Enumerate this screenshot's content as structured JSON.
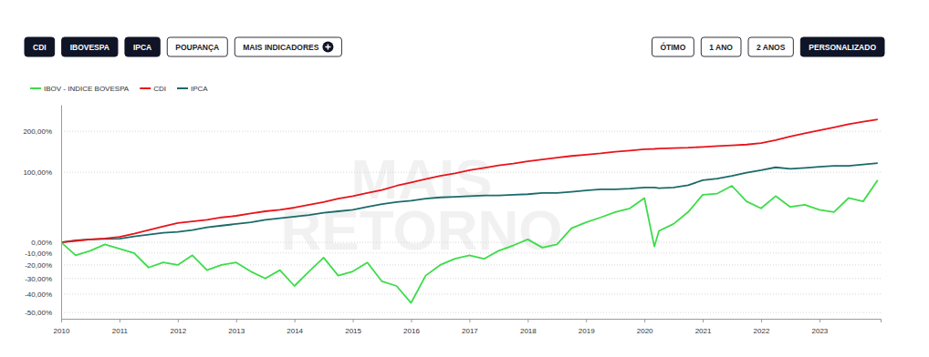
{
  "toolbar": {
    "left": [
      {
        "label": "CDI",
        "active": true
      },
      {
        "label": "IBOVESPA",
        "active": true
      },
      {
        "label": "IPCA",
        "active": true
      },
      {
        "label": "POUPANÇA",
        "active": false
      },
      {
        "label": "MAIS INDICADORES",
        "active": false
      }
    ],
    "right": [
      {
        "label": "ÓTIMO",
        "active": false
      },
      {
        "label": "1 ANO",
        "active": false
      },
      {
        "label": "2 ANOS",
        "active": false
      },
      {
        "label": "PERSONALIZADO",
        "active": true
      }
    ]
  },
  "watermark": [
    "MAIS",
    "RETORNO"
  ],
  "chart_data": {
    "type": "line",
    "log": "y",
    "grid": true,
    "legend": "top-left",
    "x": [
      2010,
      2010.25,
      2010.5,
      2010.75,
      2011,
      2011.25,
      2011.5,
      2011.75,
      2012,
      2012.25,
      2012.5,
      2012.75,
      2013,
      2013.25,
      2013.5,
      2013.75,
      2014,
      2014.25,
      2014.5,
      2014.75,
      2015,
      2015.25,
      2015.5,
      2015.75,
      2016,
      2016.25,
      2016.5,
      2016.75,
      2017,
      2017.25,
      2017.5,
      2017.75,
      2018,
      2018.25,
      2018.5,
      2018.75,
      2019,
      2019.25,
      2019.5,
      2019.75,
      2020,
      2020.17,
      2020.25,
      2020.5,
      2020.75,
      2021,
      2021.25,
      2021.5,
      2021.75,
      2022,
      2022.25,
      2022.5,
      2022.75,
      2023,
      2023.25,
      2023.5,
      2023.75,
      2024
    ],
    "xlim": [
      2010,
      2024.05
    ],
    "xticks": [
      2010,
      2011,
      2012,
      2013,
      2014,
      2015,
      2016,
      2017,
      2018,
      2019,
      2020,
      2021,
      2022,
      2023
    ],
    "ylim": [
      -53,
      290
    ],
    "yticks": [
      {
        "value": 200,
        "label": "200,00%"
      },
      {
        "value": 100,
        "label": "100,00%"
      },
      {
        "value": 0,
        "label": "0,00%"
      },
      {
        "value": -10,
        "label": "-10,00%"
      },
      {
        "value": -20,
        "label": "-20,00%"
      },
      {
        "value": -30,
        "label": "-30,00%"
      },
      {
        "value": -40,
        "label": "-40,00%"
      },
      {
        "value": -50,
        "label": "-50,00%"
      }
    ],
    "series": [
      {
        "name": "IBOV - INDICE BOVESPA",
        "color": "#3ddc4a",
        "values": [
          0,
          -12,
          -8,
          -2,
          -6,
          -10,
          -22,
          -18,
          -20,
          -12,
          -24,
          -20,
          -18,
          -25,
          -30,
          -24,
          -35,
          -25,
          -14,
          -28,
          -25,
          -18,
          -32,
          -35,
          -45,
          -28,
          -20,
          -15,
          -12,
          -15,
          -8,
          -3,
          3,
          -5,
          -2,
          15,
          22,
          28,
          35,
          40,
          55,
          -4,
          12,
          20,
          35,
          60,
          62,
          75,
          50,
          40,
          58,
          42,
          45,
          38,
          35,
          55,
          50,
          85
        ]
      },
      {
        "name": "CDI",
        "color": "#e8141b",
        "values": [
          0,
          1.5,
          3,
          4,
          5.5,
          9,
          13,
          17,
          21,
          23,
          25,
          28,
          30,
          33,
          36,
          38,
          41,
          45,
          49,
          54,
          58,
          63,
          68,
          75,
          81,
          87,
          93,
          98,
          104,
          109,
          114,
          118,
          123,
          127,
          131,
          135,
          138,
          141,
          145,
          148,
          151,
          152,
          153,
          154,
          155,
          157,
          159,
          161,
          163,
          167,
          175,
          185,
          194,
          203,
          212,
          222,
          230,
          237
        ]
      },
      {
        "name": "IPCA",
        "color": "#1c6a6a",
        "values": [
          0,
          2,
          3,
          3.5,
          3.7,
          6,
          8,
          10,
          11,
          13,
          16,
          18,
          20,
          22,
          25,
          27,
          29,
          31,
          34,
          36,
          38,
          42,
          46,
          49,
          51,
          54,
          56,
          57,
          58,
          59,
          59,
          60,
          61,
          63,
          63,
          65,
          67,
          69,
          69,
          70,
          72,
          72,
          71,
          72,
          76,
          85,
          88,
          93,
          99,
          104,
          110,
          107,
          109,
          111,
          113,
          113,
          116,
          119
        ]
      }
    ]
  }
}
